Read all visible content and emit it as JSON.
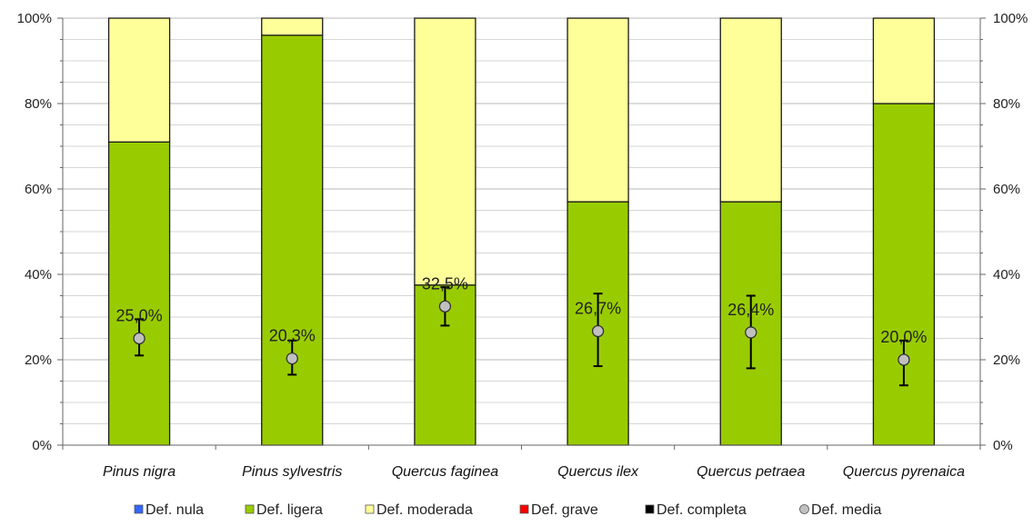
{
  "chart_data": {
    "type": "bar",
    "stacked": true,
    "categories": [
      "Pinus nigra",
      "Pinus sylvestris",
      "Quercus faginea",
      "Quercus ilex",
      "Quercus petraea",
      "Quercus pyrenaica"
    ],
    "series": [
      {
        "name": "Def. nula",
        "color": "#3366ff",
        "values": [
          0,
          0,
          0,
          0,
          0,
          0
        ]
      },
      {
        "name": "Def. ligera",
        "color": "#99cc00",
        "values": [
          71,
          96,
          37.5,
          57,
          57,
          80
        ]
      },
      {
        "name": "Def. moderada",
        "color": "#ffff99",
        "values": [
          29,
          4,
          62.5,
          43,
          43,
          20
        ]
      },
      {
        "name": "Def. grave",
        "color": "#ff0000",
        "values": [
          0,
          0,
          0,
          0,
          0,
          0
        ]
      },
      {
        "name": "Def. completa",
        "color": "#000000",
        "values": [
          0,
          0,
          0,
          0,
          0,
          0
        ]
      }
    ],
    "mean_series": {
      "name": "Def. media",
      "color": "#c0c0c0",
      "values": [
        25.0,
        20.3,
        32.5,
        26.7,
        26.4,
        20.0
      ],
      "labels": [
        "25,0%",
        "20,3%",
        "32,5%",
        "26,7%",
        "26,4%",
        "20,0%"
      ],
      "err_low": [
        21,
        16.5,
        28,
        18.5,
        18,
        14
      ],
      "err_high": [
        29.5,
        24.5,
        37,
        35.5,
        35,
        24.5
      ]
    },
    "y_ticks": [
      "0%",
      "20%",
      "40%",
      "60%",
      "80%",
      "100%"
    ],
    "ylim": [
      0,
      100
    ],
    "grid": true,
    "legend_position": "bottom"
  }
}
